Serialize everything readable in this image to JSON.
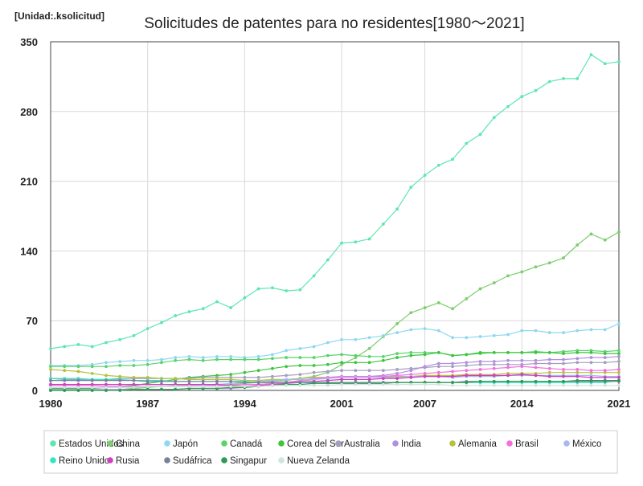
{
  "chart_data": {
    "type": "line",
    "title": "Solicitudes de patentes para no residentes[1980～2021]",
    "unit_label": "[Unidad:.ksolicitud]",
    "xlabel": "",
    "ylabel": "",
    "ylim": [
      0,
      350
    ],
    "xlim": [
      1980,
      2021
    ],
    "y_ticks": [
      0,
      70,
      140,
      210,
      280,
      350
    ],
    "x_ticks": [
      1980,
      1987,
      1994,
      2001,
      2007,
      2014,
      2021
    ],
    "grid": true,
    "legend_position": "bottom",
    "x": [
      1980,
      1981,
      1982,
      1983,
      1984,
      1985,
      1986,
      1987,
      1988,
      1989,
      1990,
      1991,
      1992,
      1993,
      1994,
      1995,
      1996,
      1997,
      1998,
      1999,
      2000,
      2001,
      2002,
      2003,
      2004,
      2005,
      2006,
      2007,
      2008,
      2009,
      2010,
      2011,
      2012,
      2013,
      2014,
      2015,
      2016,
      2017,
      2018,
      2019,
      2020,
      2021
    ],
    "series": [
      {
        "name": "Estados Unidos",
        "color": "#5ee6b0",
        "values": [
          42,
          44,
          46,
          44,
          48,
          51,
          55,
          62,
          68,
          75,
          79,
          82,
          89,
          83,
          93,
          102,
          103,
          100,
          101,
          115,
          131,
          148,
          149,
          152,
          167,
          182,
          204,
          216,
          226,
          232,
          248,
          257,
          274,
          285,
          295,
          301,
          310,
          313,
          313,
          337,
          328,
          330
        ]
      },
      {
        "name": "China",
        "color": "#7ccd6e",
        "values": [
          0,
          0,
          0,
          0,
          0,
          1,
          2,
          3,
          4,
          5,
          5,
          5,
          5,
          6,
          7,
          8,
          9,
          10,
          12,
          14,
          18,
          26,
          33,
          42,
          54,
          67,
          78,
          83,
          88,
          82,
          92,
          102,
          108,
          115,
          119,
          124,
          128,
          133,
          146,
          157,
          151,
          159
        ]
      },
      {
        "name": "Japón",
        "color": "#8fd8f0",
        "values": [
          25,
          25,
          25,
          26,
          28,
          29,
          30,
          30,
          31,
          33,
          34,
          33,
          34,
          34,
          33,
          34,
          36,
          40,
          42,
          44,
          48,
          51,
          51,
          53,
          55,
          58,
          61,
          62,
          60,
          53,
          53,
          54,
          55,
          56,
          60,
          60,
          58,
          58,
          60,
          61,
          61,
          67
        ]
      },
      {
        "name": "Canadá",
        "color": "#59d46a",
        "values": [
          24,
          24,
          24,
          24,
          24,
          25,
          25,
          26,
          28,
          30,
          31,
          30,
          31,
          31,
          31,
          31,
          32,
          33,
          33,
          33,
          35,
          36,
          35,
          34,
          34,
          37,
          38,
          38,
          38,
          35,
          36,
          37,
          38,
          38,
          38,
          39,
          38,
          39,
          40,
          40,
          39,
          40
        ]
      },
      {
        "name": "Corea del Sur",
        "color": "#3ec43e",
        "values": [
          2,
          2,
          2,
          2,
          3,
          4,
          5,
          7,
          9,
          11,
          13,
          14,
          15,
          16,
          18,
          20,
          22,
          24,
          25,
          25,
          26,
          28,
          28,
          28,
          30,
          33,
          35,
          36,
          38,
          35,
          36,
          38,
          38,
          38,
          38,
          38,
          38,
          37,
          38,
          38,
          37,
          37
        ]
      },
      {
        "name": "Australia",
        "color": "#a49fbf",
        "values": [
          12,
          11,
          11,
          11,
          11,
          12,
          12,
          12,
          12,
          12,
          12,
          13,
          13,
          13,
          13,
          13,
          14,
          15,
          16,
          18,
          19,
          20,
          20,
          20,
          20,
          21,
          22,
          23,
          24,
          24,
          25,
          26,
          26,
          26,
          26,
          27,
          27,
          27,
          28,
          28,
          28,
          29
        ]
      },
      {
        "name": "India",
        "color": "#b28fe0",
        "values": [
          1,
          1,
          1,
          1,
          1,
          1,
          1,
          1,
          1,
          1,
          2,
          2,
          2,
          2,
          3,
          4,
          5,
          7,
          9,
          11,
          13,
          14,
          14,
          14,
          15,
          17,
          20,
          24,
          27,
          27,
          28,
          29,
          29,
          30,
          30,
          30,
          31,
          31,
          32,
          33,
          33,
          34
        ]
      },
      {
        "name": "Alemania",
        "color": "#b5c23c",
        "values": [
          21,
          20,
          19,
          17,
          15,
          14,
          13,
          13,
          12,
          12,
          11,
          11,
          11,
          11,
          10,
          10,
          11,
          11,
          12,
          13,
          13,
          13,
          13,
          13,
          13,
          14,
          14,
          15,
          15,
          15,
          16,
          16,
          16,
          17,
          17,
          17,
          18,
          18,
          18,
          18,
          18,
          18
        ]
      },
      {
        "name": "Brasil",
        "color": "#f26fe0",
        "values": [
          5,
          5,
          5,
          5,
          4,
          4,
          4,
          4,
          4,
          4,
          5,
          5,
          5,
          5,
          6,
          6,
          7,
          8,
          10,
          12,
          13,
          14,
          14,
          14,
          14,
          15,
          16,
          17,
          18,
          19,
          20,
          21,
          22,
          23,
          24,
          23,
          22,
          21,
          21,
          20,
          20,
          21
        ]
      },
      {
        "name": "México",
        "color": "#a7b8f0",
        "values": [
          3,
          3,
          3,
          3,
          3,
          3,
          3,
          4,
          4,
          4,
          4,
          5,
          6,
          7,
          8,
          9,
          10,
          11,
          11,
          11,
          12,
          13,
          13,
          13,
          13,
          13,
          14,
          14,
          14,
          13,
          14,
          14,
          14,
          15,
          15,
          15,
          15,
          15,
          15,
          15,
          14,
          14
        ]
      },
      {
        "name": "Reino Unido",
        "color": "#34e6c0",
        "values": [
          12,
          12,
          12,
          11,
          11,
          11,
          10,
          10,
          10,
          9,
          9,
          9,
          9,
          9,
          9,
          8,
          8,
          8,
          8,
          8,
          8,
          8,
          8,
          8,
          8,
          8,
          8,
          8,
          8,
          8,
          8,
          8,
          8,
          8,
          8,
          8,
          8,
          8,
          8,
          8,
          8,
          10
        ]
      },
      {
        "name": "Rusia",
        "color": "#cf3fbf",
        "values": [
          6,
          6,
          6,
          6,
          6,
          6,
          6,
          6,
          6,
          6,
          6,
          6,
          6,
          5,
          4,
          5,
          6,
          7,
          8,
          9,
          10,
          11,
          11,
          11,
          12,
          12,
          13,
          14,
          14,
          14,
          15,
          15,
          15,
          15,
          16,
          15,
          14,
          14,
          14,
          13,
          13,
          13
        ]
      },
      {
        "name": "Sudáfrica",
        "color": "#7a7f9e",
        "values": [
          10,
          10,
          10,
          10,
          10,
          10,
          10,
          9,
          9,
          9,
          9,
          9,
          9,
          9,
          8,
          8,
          8,
          8,
          8,
          8,
          8,
          8,
          8,
          8,
          8,
          8,
          8,
          8,
          8,
          8,
          9,
          9,
          9,
          9,
          9,
          9,
          9,
          9,
          9,
          9,
          9,
          9
        ]
      },
      {
        "name": "Singapur",
        "color": "#2b9a52",
        "values": [
          0,
          0,
          0,
          0,
          0,
          0,
          1,
          1,
          1,
          1,
          2,
          2,
          2,
          3,
          3,
          4,
          5,
          6,
          6,
          7,
          7,
          7,
          7,
          7,
          7,
          8,
          8,
          8,
          8,
          8,
          8,
          9,
          9,
          9,
          9,
          9,
          9,
          9,
          10,
          10,
          10,
          10
        ]
      },
      {
        "name": "Nueva Zelanda",
        "color": "#cfe6da",
        "values": [
          3,
          3,
          3,
          3,
          3,
          3,
          3,
          4,
          4,
          4,
          4,
          4,
          4,
          4,
          4,
          4,
          5,
          5,
          5,
          5,
          5,
          6,
          6,
          6,
          6,
          6,
          6,
          6,
          6,
          5,
          5,
          5,
          5,
          5,
          5,
          5,
          5,
          5,
          5,
          5,
          5,
          5
        ]
      }
    ]
  }
}
